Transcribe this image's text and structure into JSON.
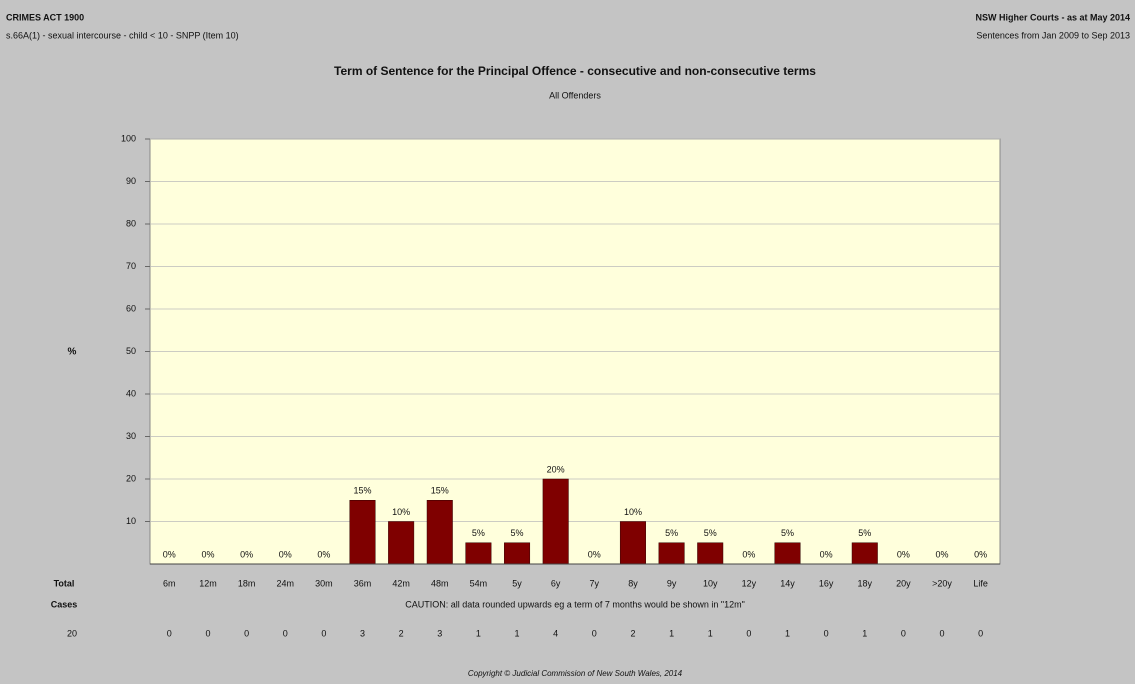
{
  "header": {
    "left_title": "CRIMES ACT 1900",
    "left_subtitle": "s.66A(1) - sexual intercourse - child < 10 - SNPP (Item 10)",
    "right_title": "NSW Higher Courts - as at May 2014",
    "right_subtitle": "Sentences from Jan 2009 to Sep 2013"
  },
  "chart_data": {
    "type": "bar",
    "title": "Term of Sentence for the Principal Offence - consecutive and non-consecutive terms",
    "subtitle": "All Offenders",
    "y_label": "%",
    "categories": [
      "6m",
      "12m",
      "18m",
      "24m",
      "30m",
      "36m",
      "42m",
      "48m",
      "54m",
      "5y",
      "6y",
      "7y",
      "8y",
      "9y",
      "10y",
      "12y",
      "14y",
      "16y",
      "18y",
      "20y",
      ">20y",
      "Life"
    ],
    "values": [
      0,
      0,
      0,
      0,
      0,
      15,
      10,
      15,
      5,
      5,
      20,
      0,
      10,
      5,
      5,
      0,
      5,
      0,
      5,
      0,
      0,
      0
    ],
    "value_labels": [
      "0%",
      "0%",
      "0%",
      "0%",
      "0%",
      "15%",
      "10%",
      "15%",
      "5%",
      "5%",
      "20%",
      "0%",
      "10%",
      "5%",
      "5%",
      "0%",
      "5%",
      "0%",
      "5%",
      "0%",
      "0%",
      "0%"
    ],
    "color": "#7f0000",
    "ylim": [
      0,
      100
    ],
    "yticks": [
      10,
      20,
      30,
      40,
      50,
      60,
      70,
      80,
      90,
      100
    ],
    "grid": true
  },
  "table": {
    "total_label": "Total",
    "cases_label": "Cases",
    "total": 20,
    "cases": [
      0,
      0,
      0,
      0,
      0,
      3,
      2,
      3,
      1,
      1,
      4,
      0,
      2,
      1,
      1,
      0,
      1,
      0,
      1,
      0,
      0,
      0
    ]
  },
  "caution": "CAUTION: all data rounded upwards eg a term of 7 months would be shown in \"12m\"",
  "copyright": "Copyright © Judicial Commission of New South Wales, 2014"
}
